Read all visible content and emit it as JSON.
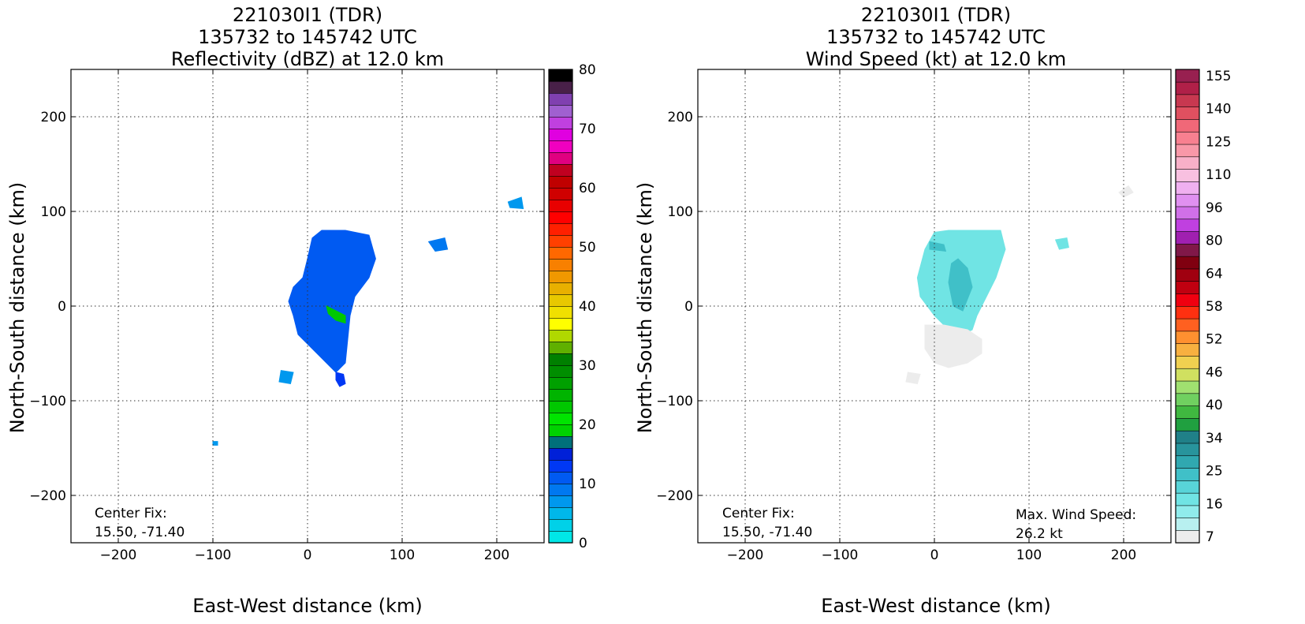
{
  "panels": [
    {
      "title_line1": "221030I1 (TDR)",
      "title_line2": "135732 to 145742 UTC",
      "title_line3": "Reflectivity (dBZ) at 12.0 km",
      "xlabel": "East-West distance (km)",
      "ylabel": "North-South distance (km)",
      "note_label": "Center Fix:",
      "note_value": "15.50, -71.40",
      "stat_label": "",
      "stat_value": ""
    },
    {
      "title_line1": "221030I1 (TDR)",
      "title_line2": "135732 to 145742 UTC",
      "title_line3": "Wind Speed (kt) at 12.0 km",
      "xlabel": "East-West distance (km)",
      "ylabel": "North-South distance (km)",
      "note_label": "Center Fix:",
      "note_value": "15.50, -71.40",
      "stat_label": "Max. Wind Speed:",
      "stat_value": "26.2 kt"
    }
  ],
  "chart_data": [
    {
      "type": "heatmap",
      "variable": "Reflectivity (dBZ)",
      "title": "221030I1 (TDR) 135732 to 145742 UTC Reflectivity (dBZ) at 12.0 km",
      "xlabel": "East-West distance (km)",
      "ylabel": "North-South distance (km)",
      "xlim": [
        -250,
        250
      ],
      "ylim": [
        -250,
        250
      ],
      "xticks": [
        -200,
        -100,
        0,
        100,
        200
      ],
      "yticks": [
        -200,
        -100,
        0,
        100,
        200
      ],
      "grid": true,
      "center_fix": [
        15.5,
        -71.4
      ],
      "colorbar": {
        "min": 0,
        "max": 80,
        "tick_labels": [
          "0",
          "10",
          "20",
          "30",
          "40",
          "50",
          "60",
          "70",
          "80"
        ],
        "tick_values": [
          0,
          10,
          20,
          30,
          40,
          50,
          60,
          70,
          80
        ],
        "colors": [
          "#00e7e7",
          "#00d1e8",
          "#00b7ea",
          "#0098ee",
          "#0078f0",
          "#005af2",
          "#0038f4",
          "#0020d8",
          "#00707a",
          "#00d200",
          "#00e400",
          "#00c800",
          "#00b400",
          "#00a000",
          "#008e00",
          "#008000",
          "#60b000",
          "#b0d800",
          "#ffff00",
          "#f0e000",
          "#e8c800",
          "#e8b000",
          "#f09800",
          "#f88000",
          "#ff6800",
          "#ff4000",
          "#ff2000",
          "#ff0000",
          "#e80000",
          "#d00000",
          "#c00000",
          "#c00020",
          "#e00080",
          "#f000c0",
          "#e000e0",
          "#c040e0",
          "#a060d0",
          "#8040b0",
          "#482048",
          "#000000"
        ]
      },
      "echo_regions": [
        {
          "name": "main",
          "points": [
            [
              -5,
              30
            ],
            [
              0,
              50
            ],
            [
              5,
              72
            ],
            [
              15,
              80
            ],
            [
              40,
              80
            ],
            [
              65,
              75
            ],
            [
              72,
              50
            ],
            [
              65,
              30
            ],
            [
              50,
              10
            ],
            [
              45,
              -10
            ],
            [
              42,
              -40
            ],
            [
              40,
              -60
            ],
            [
              30,
              -70
            ],
            [
              15,
              -55
            ],
            [
              5,
              -45
            ],
            [
              -10,
              -30
            ],
            [
              -15,
              -10
            ],
            [
              -20,
              5
            ],
            [
              -15,
              20
            ]
          ],
          "dbz": 10
        },
        {
          "name": "core",
          "points": [
            [
              20,
              0
            ],
            [
              30,
              -5
            ],
            [
              40,
              -10
            ],
            [
              40,
              -18
            ],
            [
              30,
              -15
            ],
            [
              22,
              -8
            ]
          ],
          "dbz": 22
        },
        {
          "name": "south-tail",
          "points": [
            [
              30,
              -70
            ],
            [
              38,
              -72
            ],
            [
              40,
              -82
            ],
            [
              34,
              -85
            ],
            [
              30,
              -78
            ]
          ],
          "dbz": 12
        },
        {
          "name": "east-cell",
          "points": [
            [
              128,
              68
            ],
            [
              145,
              72
            ],
            [
              148,
              60
            ],
            [
              135,
              58
            ]
          ],
          "dbz": 8
        },
        {
          "name": "far-east",
          "points": [
            [
              212,
              110
            ],
            [
              226,
              115
            ],
            [
              228,
              103
            ],
            [
              214,
              104
            ]
          ],
          "dbz": 6
        },
        {
          "name": "sw-blob",
          "points": [
            [
              -28,
              -68
            ],
            [
              -15,
              -70
            ],
            [
              -18,
              -82
            ],
            [
              -30,
              -80
            ]
          ],
          "dbz": 6
        },
        {
          "name": "w-speck",
          "points": [
            [
              -100,
              -143
            ],
            [
              -95,
              -143
            ],
            [
              -95,
              -147
            ],
            [
              -100,
              -147
            ]
          ],
          "dbz": 6
        }
      ]
    },
    {
      "type": "heatmap",
      "variable": "Wind Speed (kt)",
      "title": "221030I1 (TDR) 135732 to 145742 UTC Wind Speed (kt) at 12.0 km",
      "xlabel": "East-West distance (km)",
      "ylabel": "North-South distance (km)",
      "xlim": [
        -250,
        250
      ],
      "ylim": [
        -250,
        250
      ],
      "xticks": [
        -200,
        -100,
        0,
        100,
        200
      ],
      "yticks": [
        -200,
        -100,
        0,
        100,
        200
      ],
      "grid": true,
      "center_fix": [
        15.5,
        -71.4
      ],
      "max_wind_speed_kt": 26.2,
      "colorbar": {
        "tick_labels": [
          "7",
          "16",
          "25",
          "34",
          "40",
          "46",
          "52",
          "58",
          "64",
          "80",
          "96",
          "110",
          "125",
          "140",
          "155"
        ],
        "colors": [
          "#ececec",
          "#b8f0f0",
          "#90ecec",
          "#70e4e4",
          "#58d4d8",
          "#40c0c8",
          "#30a8b0",
          "#28949c",
          "#208088",
          "#20a040",
          "#40b840",
          "#70d060",
          "#a0e070",
          "#d0e060",
          "#f0d050",
          "#f8b040",
          "#ff9030",
          "#ff6020",
          "#ff3010",
          "#f00010",
          "#c00010",
          "#a00010",
          "#800010",
          "#801848",
          "#a020b0",
          "#c040e0",
          "#d070e8",
          "#e090f0",
          "#f0b0f0",
          "#f8c0e0",
          "#f8b0c8",
          "#f898a8",
          "#f88090",
          "#f06878",
          "#e05060",
          "#c83850",
          "#b02048",
          "#982050"
        ]
      },
      "wind_regions": [
        {
          "name": "main",
          "points": [
            [
              -10,
              60
            ],
            [
              0,
              78
            ],
            [
              15,
              80
            ],
            [
              40,
              80
            ],
            [
              70,
              80
            ],
            [
              75,
              60
            ],
            [
              65,
              30
            ],
            [
              55,
              10
            ],
            [
              45,
              -10
            ],
            [
              40,
              -25
            ],
            [
              30,
              -30
            ],
            [
              20,
              -25
            ],
            [
              10,
              -20
            ],
            [
              0,
              -10
            ],
            [
              -15,
              10
            ],
            [
              -18,
              30
            ]
          ],
          "kt": 16
        },
        {
          "name": "core",
          "points": [
            [
              25,
              50
            ],
            [
              35,
              40
            ],
            [
              40,
              20
            ],
            [
              30,
              -5
            ],
            [
              20,
              0
            ],
            [
              15,
              25
            ],
            [
              18,
              45
            ]
          ],
          "kt": 25
        },
        {
          "name": "nw-strip",
          "points": [
            [
              -5,
              68
            ],
            [
              10,
              65
            ],
            [
              12,
              58
            ],
            [
              -5,
              60
            ]
          ],
          "kt": 25
        },
        {
          "name": "low-speed-south",
          "points": [
            [
              -10,
              -20
            ],
            [
              10,
              -20
            ],
            [
              35,
              -25
            ],
            [
              50,
              -35
            ],
            [
              50,
              -50
            ],
            [
              35,
              -60
            ],
            [
              15,
              -65
            ],
            [
              0,
              -60
            ],
            [
              -10,
              -45
            ]
          ],
          "kt": 7
        },
        {
          "name": "sw-blob",
          "points": [
            [
              -28,
              -70
            ],
            [
              -15,
              -72
            ],
            [
              -18,
              -82
            ],
            [
              -30,
              -80
            ]
          ],
          "kt": 7
        },
        {
          "name": "east-cell",
          "points": [
            [
              128,
              70
            ],
            [
              140,
              72
            ],
            [
              142,
              62
            ],
            [
              132,
              60
            ]
          ],
          "kt": 16
        },
        {
          "name": "far-east",
          "points": [
            [
              195,
              120
            ],
            [
              205,
              127
            ],
            [
              210,
              120
            ],
            [
              200,
              115
            ]
          ],
          "kt": 7
        }
      ]
    }
  ]
}
